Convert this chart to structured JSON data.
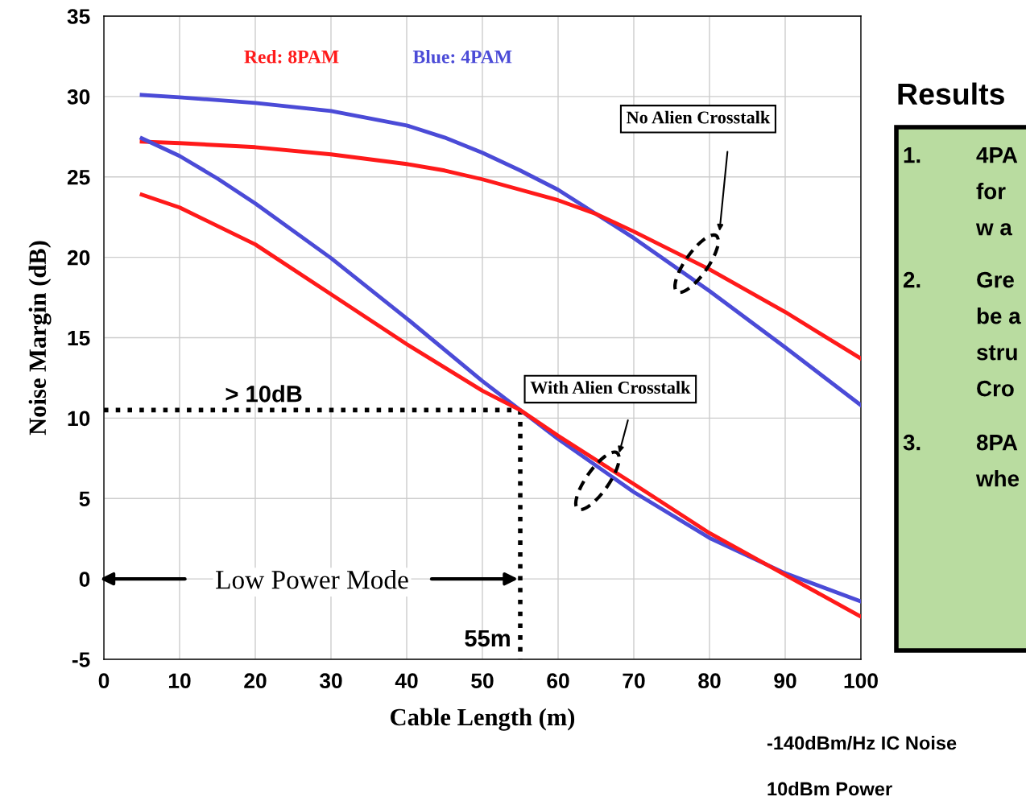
{
  "chart_data": {
    "type": "line",
    "xlabel": "Cable Length (m)",
    "ylabel": "Noise Margin (dB)",
    "xlim": [
      0,
      100
    ],
    "xticks": [
      0,
      10,
      20,
      30,
      40,
      50,
      60,
      70,
      80,
      90,
      100
    ],
    "ylim": [
      -5,
      35
    ],
    "yticks": [
      -5,
      0,
      5,
      10,
      15,
      20,
      25,
      30,
      35
    ],
    "grid": true,
    "line_style": "solid",
    "marker": "none",
    "series": [
      {
        "color": "#4b4bd7",
        "x": [
          5,
          10,
          20,
          30,
          40,
          45,
          50,
          55,
          60,
          65,
          70,
          80,
          90,
          100
        ],
        "values": [
          30.1,
          29.95,
          29.6,
          29.1,
          28.2,
          27.45,
          26.5,
          25.4,
          24.2,
          22.7,
          21.2,
          17.9,
          14.4,
          10.8
        ]
      },
      {
        "color": "#ff1a1a",
        "x": [
          5,
          10,
          20,
          30,
          40,
          45,
          50,
          60,
          65,
          70,
          80,
          90,
          100
        ],
        "values": [
          27.2,
          27.1,
          26.85,
          26.4,
          25.8,
          25.4,
          24.85,
          23.55,
          22.7,
          21.6,
          19.25,
          16.6,
          13.7
        ]
      },
      {
        "color": "#4b4bd7",
        "x": [
          5,
          10,
          15,
          20,
          30,
          40,
          50,
          55,
          60,
          70,
          80,
          90,
          100
        ],
        "values": [
          27.4,
          26.3,
          24.9,
          23.35,
          19.95,
          16.2,
          12.3,
          10.5,
          8.7,
          5.4,
          2.55,
          0.35,
          -1.4
        ]
      },
      {
        "color": "#ff1a1a",
        "x": [
          5,
          10,
          20,
          30,
          40,
          50,
          55,
          60,
          70,
          80,
          90,
          100
        ],
        "values": [
          23.9,
          23.1,
          20.8,
          17.7,
          14.6,
          11.7,
          10.5,
          8.9,
          5.9,
          2.85,
          0.25,
          -2.35
        ]
      },
      {
        "color": "#000000",
        "line_style": "dotted",
        "x": [
          0,
          55
        ],
        "values": [
          10.5,
          10.5
        ]
      },
      {
        "color": "#000000",
        "line_style": "dotted",
        "x": [
          55,
          55
        ],
        "values": [
          10.5,
          -5
        ]
      }
    ],
    "annotations": [
      "Red: 8PAM",
      "Blue: 4PAM",
      "No Alien Crosstalk",
      "With Alien Crosstalk",
      "> 10dB",
      "55m",
      "Low Power Mode",
      "-140dBm/Hz IC Noise",
      "10dBm Power",
      "Results",
      "1.",
      "4PA",
      "for",
      "w a",
      "2.",
      "Gre",
      "be a",
      "stru",
      "Cro",
      "3.",
      "8PA",
      "whe"
    ]
  }
}
